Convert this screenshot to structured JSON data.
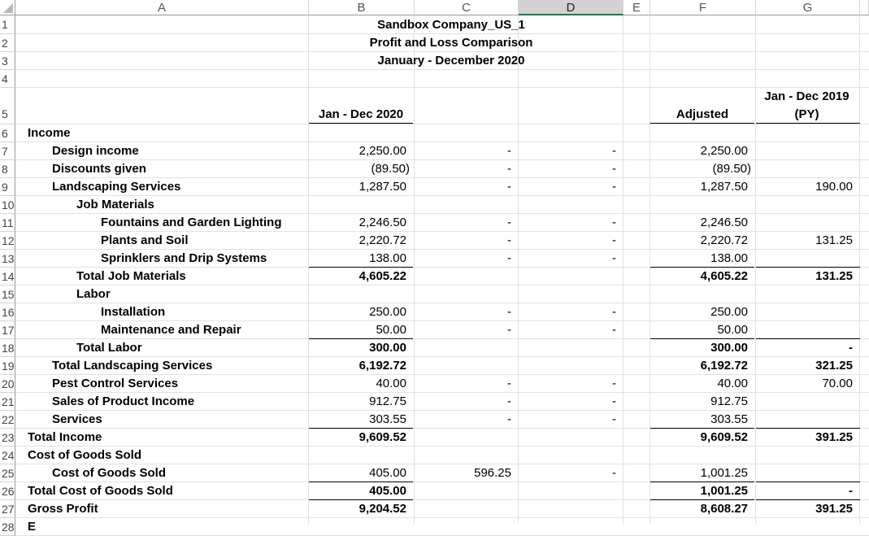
{
  "columns": [
    "A",
    "B",
    "C",
    "D",
    "E",
    "F",
    "G"
  ],
  "rows": [
    "1",
    "2",
    "3",
    "4",
    "5",
    "6",
    "7",
    "8",
    "9",
    "10",
    "11",
    "12",
    "13",
    "14",
    "15",
    "16",
    "17",
    "18",
    "19",
    "20",
    "21",
    "22",
    "23",
    "24",
    "25",
    "26",
    "27",
    "28"
  ],
  "title": {
    "company": "Sandbox Company_US_1",
    "report": "Profit and Loss Comparison",
    "period": "January - December 2020"
  },
  "headers": {
    "col_b": "Jan - Dec 2020",
    "col_f": "Adjusted",
    "col_g_line1": "Jan - Dec 2019",
    "col_g_line2": "(PY)"
  },
  "lines": [
    {
      "label": "Income",
      "b": "",
      "c": "",
      "d": "",
      "f": "",
      "g": ""
    },
    {
      "label": "Design income",
      "b": "2,250.00",
      "c": "-",
      "d": "-",
      "f": "2,250.00",
      "g": ""
    },
    {
      "label": "Discounts given",
      "b": "(89.50)",
      "c": "-",
      "d": "-",
      "f": "(89.50)",
      "g": ""
    },
    {
      "label": "Landscaping Services",
      "b": "1,287.50",
      "c": "-",
      "d": "-",
      "f": "1,287.50",
      "g": "190.00"
    },
    {
      "label": "Job Materials",
      "b": "",
      "c": "",
      "d": "",
      "f": "",
      "g": ""
    },
    {
      "label": "Fountains and Garden Lighting",
      "b": "2,246.50",
      "c": "-",
      "d": "-",
      "f": "2,246.50",
      "g": ""
    },
    {
      "label": "Plants and Soil",
      "b": "2,220.72",
      "c": "-",
      "d": "-",
      "f": "2,220.72",
      "g": "131.25"
    },
    {
      "label": "Sprinklers and Drip Systems",
      "b": "138.00",
      "c": "-",
      "d": "-",
      "f": "138.00",
      "g": ""
    },
    {
      "label": "Total Job Materials",
      "b": "4,605.22",
      "c": "",
      "d": "",
      "f": "4,605.22",
      "g": "131.25"
    },
    {
      "label": "Labor",
      "b": "",
      "c": "",
      "d": "",
      "f": "",
      "g": ""
    },
    {
      "label": "Installation",
      "b": "250.00",
      "c": "-",
      "d": "-",
      "f": "250.00",
      "g": ""
    },
    {
      "label": "Maintenance and Repair",
      "b": "50.00",
      "c": "-",
      "d": "-",
      "f": "50.00",
      "g": ""
    },
    {
      "label": "Total Labor",
      "b": "300.00",
      "c": "",
      "d": "",
      "f": "300.00",
      "g": "-"
    },
    {
      "label": "Total Landscaping Services",
      "b": "6,192.72",
      "c": "",
      "d": "",
      "f": "6,192.72",
      "g": "321.25"
    },
    {
      "label": "Pest Control Services",
      "b": "40.00",
      "c": "-",
      "d": "-",
      "f": "40.00",
      "g": "70.00"
    },
    {
      "label": "Sales of Product Income",
      "b": "912.75",
      "c": "-",
      "d": "-",
      "f": "912.75",
      "g": ""
    },
    {
      "label": "Services",
      "b": "303.55",
      "c": "-",
      "d": "-",
      "f": "303.55",
      "g": ""
    },
    {
      "label": "Total Income",
      "b": "9,609.52",
      "c": "",
      "d": "",
      "f": "9,609.52",
      "g": "391.25"
    },
    {
      "label": "Cost of Goods Sold",
      "b": "",
      "c": "",
      "d": "",
      "f": "",
      "g": ""
    },
    {
      "label": "Cost of Goods Sold",
      "b": "405.00",
      "c": "596.25",
      "d": "-",
      "f": "1,001.25",
      "g": ""
    },
    {
      "label": "Total Cost of Goods Sold",
      "b": "405.00",
      "c": "",
      "d": "",
      "f": "1,001.25",
      "g": "-"
    },
    {
      "label": "Gross Profit",
      "b": "9,204.52",
      "c": "",
      "d": "",
      "f": "8,608.27",
      "g": "391.25"
    },
    {
      "label": "E",
      "b": "",
      "c": "",
      "d": "",
      "f": "",
      "g": ""
    }
  ],
  "selected_column": "D",
  "accent": "#217346"
}
